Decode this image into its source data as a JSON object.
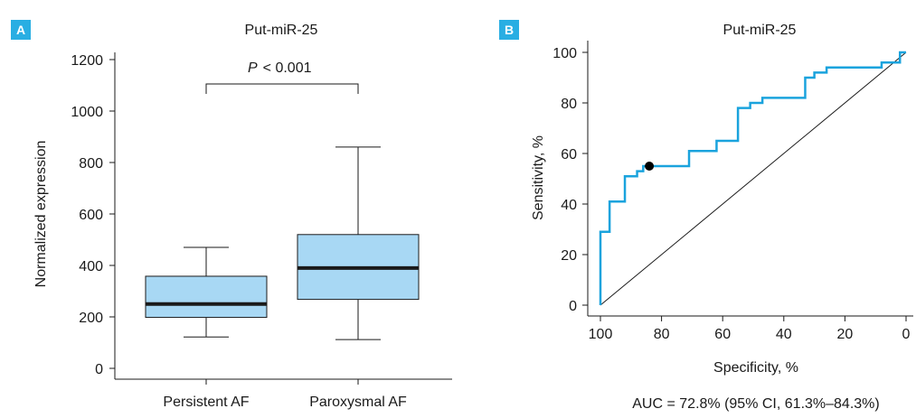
{
  "colors": {
    "box_fill": "#a8d8f4",
    "roc_line": "#1aa3dd",
    "panel_badge": "#29aee3",
    "axis": "#1a1a1a"
  },
  "panel_a": {
    "letter": "A"
  },
  "panel_b": {
    "letter": "B",
    "auc_text": "AUC = 72.8% (95% CI, 61.3%–84.3%)"
  },
  "chart_data": [
    {
      "type": "box",
      "title": "Put-miR-25",
      "ylabel": "Normalized expression",
      "xlabel": "",
      "ylim": [
        0,
        1200
      ],
      "yticks": [
        0,
        200,
        400,
        600,
        800,
        1000,
        1200
      ],
      "categories": [
        "Persistent AF",
        "Paroxysmal AF"
      ],
      "boxes": [
        {
          "category": "Persistent AF",
          "min": 122,
          "q1": 198,
          "median": 250,
          "q3": 358,
          "max": 470
        },
        {
          "category": "Paroxysmal AF",
          "min": 112,
          "q1": 268,
          "median": 390,
          "q3": 520,
          "max": 860
        }
      ],
      "annotation": {
        "label": "P",
        "text": "< 0.001"
      },
      "grid": false
    },
    {
      "type": "line",
      "title": "Put-miR-25",
      "xlabel": "Specificity, %",
      "ylabel": "Sensitivity, %",
      "xlim": [
        100,
        0
      ],
      "ylim": [
        0,
        100
      ],
      "xticks": [
        100,
        80,
        60,
        40,
        20,
        0
      ],
      "yticks": [
        0,
        20,
        40,
        60,
        80,
        100
      ],
      "roc_steps": [
        [
          100,
          0
        ],
        [
          100,
          29
        ],
        [
          97,
          29
        ],
        [
          97,
          41
        ],
        [
          92,
          41
        ],
        [
          92,
          51
        ],
        [
          88,
          51
        ],
        [
          88,
          53
        ],
        [
          86,
          53
        ],
        [
          86,
          55
        ],
        [
          71,
          55
        ],
        [
          71,
          61
        ],
        [
          62,
          61
        ],
        [
          62,
          65
        ],
        [
          55,
          65
        ],
        [
          55,
          78
        ],
        [
          51,
          78
        ],
        [
          51,
          80
        ],
        [
          47,
          80
        ],
        [
          47,
          82
        ],
        [
          33,
          82
        ],
        [
          33,
          90
        ],
        [
          30,
          90
        ],
        [
          30,
          92
        ],
        [
          26,
          92
        ],
        [
          26,
          94
        ],
        [
          8,
          94
        ],
        [
          8,
          96
        ],
        [
          2,
          96
        ],
        [
          2,
          100
        ],
        [
          0,
          100
        ]
      ],
      "reference_line": [
        [
          100,
          0
        ],
        [
          0,
          100
        ]
      ],
      "optimal_point": [
        84,
        55
      ],
      "grid": false
    }
  ]
}
